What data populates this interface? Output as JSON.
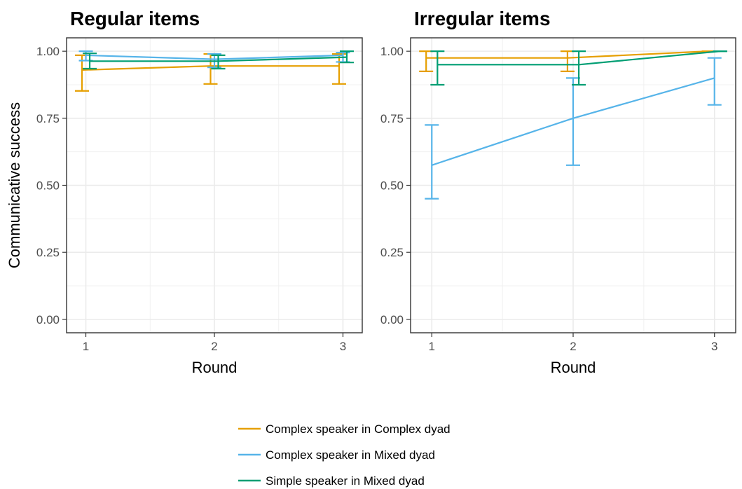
{
  "chart_data": [
    {
      "type": "line",
      "title": "Regular items",
      "xlabel": "Round",
      "ylabel": "Communicative success",
      "x": [
        1,
        2,
        3
      ],
      "xlim": [
        0.85,
        3.15
      ],
      "ylim": [
        -0.05,
        1.05
      ],
      "x_ticks": [
        "1",
        "2",
        "3"
      ],
      "y_ticks": [
        "0.00",
        "0.25",
        "0.50",
        "0.75",
        "1.00"
      ],
      "grid": true,
      "series": [
        {
          "name": "Complex speaker in Complex dyad",
          "color": "#E69F00",
          "values": [
            0.93,
            0.945,
            0.945
          ],
          "lower": [
            0.852,
            0.878,
            0.878
          ],
          "upper": [
            0.985,
            0.99,
            0.99
          ],
          "offset": -0.03
        },
        {
          "name": "Complex speaker in Mixed dyad",
          "color": "#56B4E9",
          "values": [
            0.985,
            0.97,
            0.985
          ],
          "lower": [
            0.965,
            0.94,
            0.96
          ],
          "upper": [
            1.0,
            0.99,
            0.995
          ],
          "offset": 0.0
        },
        {
          "name": "Simple speaker in Mixed dyad",
          "color": "#009E73",
          "values": [
            0.963,
            0.963,
            0.978
          ],
          "lower": [
            0.935,
            0.935,
            0.958
          ],
          "upper": [
            0.992,
            0.985,
            1.0
          ],
          "offset": 0.03
        }
      ]
    },
    {
      "type": "line",
      "title": "Irregular items",
      "xlabel": "Round",
      "ylabel": "",
      "x": [
        1,
        2,
        3
      ],
      "xlim": [
        0.85,
        3.15
      ],
      "ylim": [
        -0.05,
        1.05
      ],
      "x_ticks": [
        "1",
        "2",
        "3"
      ],
      "y_ticks": [
        "0.00",
        "0.25",
        "0.50",
        "0.75",
        "1.00"
      ],
      "grid": true,
      "series": [
        {
          "name": "Complex speaker in Complex dyad",
          "color": "#E69F00",
          "values": [
            0.975,
            0.975,
            1.0
          ],
          "lower": [
            0.925,
            0.925,
            1.0
          ],
          "upper": [
            1.0,
            1.0,
            1.0
          ],
          "offset": -0.04
        },
        {
          "name": "Complex speaker in Mixed dyad",
          "color": "#56B4E9",
          "values": [
            0.575,
            0.75,
            0.9
          ],
          "lower": [
            0.45,
            0.575,
            0.8
          ],
          "upper": [
            0.725,
            0.9,
            0.975
          ],
          "offset": 0.0
        },
        {
          "name": "Simple speaker in Mixed dyad",
          "color": "#009E73",
          "values": [
            0.95,
            0.95,
            1.0
          ],
          "lower": [
            0.875,
            0.875,
            1.0
          ],
          "upper": [
            1.0,
            1.0,
            1.0
          ],
          "offset": 0.04
        }
      ]
    }
  ],
  "legend": {
    "placement": "bottom",
    "items": [
      {
        "label": "Complex speaker in Complex dyad",
        "color": "#E69F00"
      },
      {
        "label": "Complex speaker in Mixed dyad",
        "color": "#56B4E9"
      },
      {
        "label": "Simple speaker in Mixed dyad",
        "color": "#009E73"
      }
    ]
  }
}
